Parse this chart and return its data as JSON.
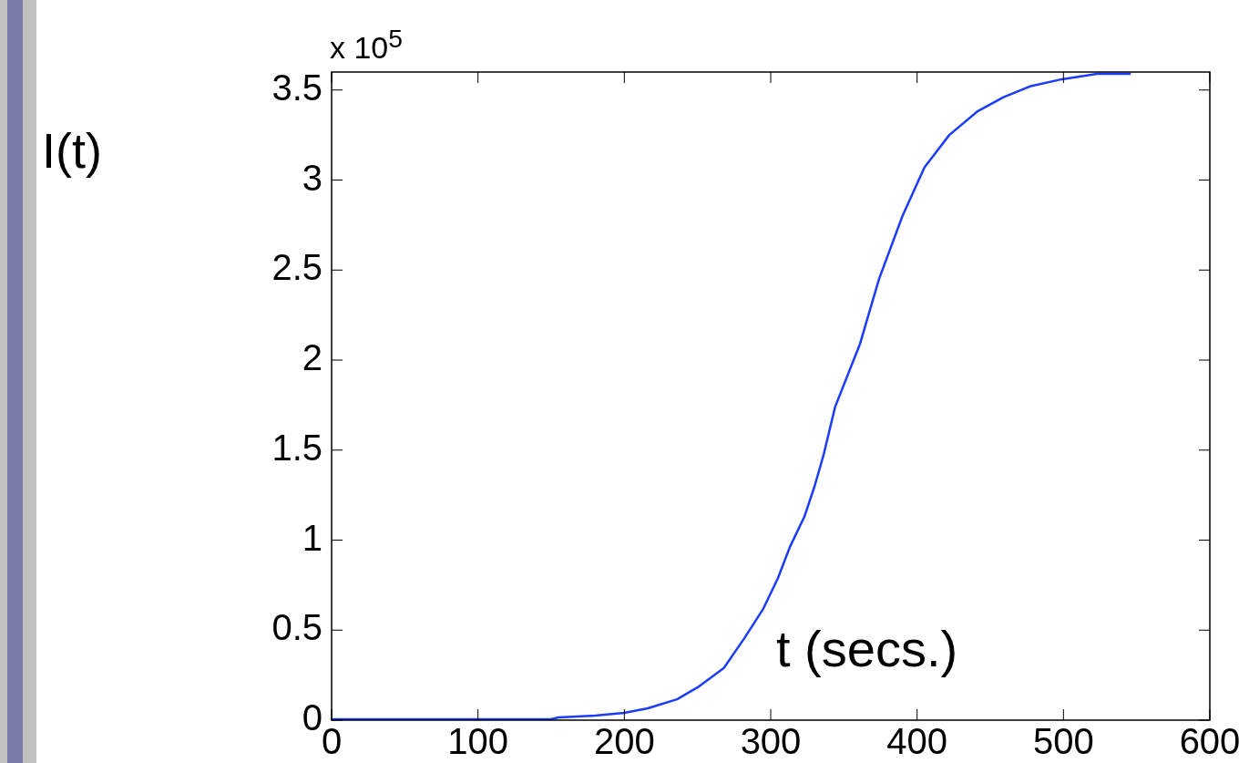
{
  "chart_data": {
    "type": "line",
    "xlabel": "t (secs.)",
    "ylabel": "I(t)",
    "annotations": [
      "x 10$^{5}$"
    ],
    "x": [
      0,
      150,
      155,
      180,
      200,
      216,
      236,
      251,
      268,
      282,
      295,
      305,
      313,
      323,
      330,
      336,
      344,
      361,
      374,
      390,
      405,
      422,
      441,
      459,
      477,
      499,
      523,
      546
    ],
    "values": [
      0.005,
      0.005,
      0.015,
      0.025,
      0.04,
      0.066,
      0.116,
      0.187,
      0.29,
      0.455,
      0.62,
      0.79,
      0.96,
      1.13,
      1.3,
      1.47,
      1.74,
      2.09,
      2.45,
      2.8,
      3.07,
      3.25,
      3.38,
      3.46,
      3.52,
      3.56,
      3.59,
      3.59
    ],
    "color": "#1a3cff",
    "marker": "none",
    "line_style": "solid",
    "xlim": [
      0,
      600
    ],
    "ylim": [
      0,
      3.6
    ],
    "xticks": [
      0,
      100,
      200,
      300,
      400,
      500,
      600
    ],
    "yticks": [
      0,
      0.5,
      1,
      1.5,
      2,
      2.5,
      3,
      3.5
    ]
  }
}
